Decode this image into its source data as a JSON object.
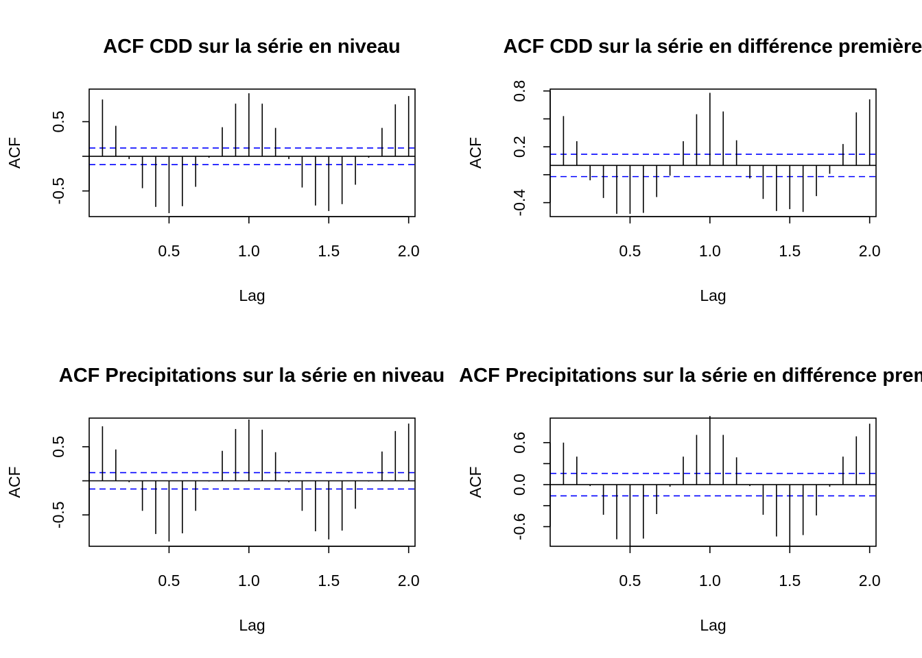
{
  "chart_data": [
    {
      "type": "bar",
      "title": "ACF CDD sur la série en niveau",
      "xlabel": "Lag",
      "ylabel": "ACF",
      "xlim": [
        0,
        2.04
      ],
      "ylim": [
        -0.87,
        0.97
      ],
      "xticks": [
        0.5,
        1.0,
        1.5,
        2.0
      ],
      "xtick_labels": [
        "0.5",
        "1.0",
        "1.5",
        "2.0"
      ],
      "yticks": [
        -0.5,
        0.5
      ],
      "ytick_labels": [
        "-0.5",
        "0.5"
      ],
      "ci": 0.12,
      "ci_color": "#0000ff",
      "series": [
        {
          "x": [
            0.0833,
            0.1667,
            0.25,
            0.3333,
            0.4167,
            0.5,
            0.5833,
            0.6667,
            0.75,
            0.8333,
            0.9167,
            1.0,
            1.0833,
            1.1667,
            1.25,
            1.3333,
            1.4167,
            1.5,
            1.5833,
            1.6667,
            1.75,
            1.8333,
            1.9167,
            2.0
          ],
          "values": [
            0.82,
            0.44,
            -0.04,
            -0.46,
            -0.73,
            -0.82,
            -0.72,
            -0.44,
            -0.02,
            0.42,
            0.76,
            0.91,
            0.76,
            0.41,
            -0.04,
            -0.45,
            -0.71,
            -0.79,
            -0.69,
            -0.41,
            -0.02,
            0.41,
            0.75,
            0.87
          ]
        }
      ]
    },
    {
      "type": "bar",
      "title": "ACF CDD sur la série en différence première",
      "xlabel": "Lag",
      "ylabel": "ACF",
      "xlim": [
        0,
        2.04
      ],
      "ylim": [
        -0.55,
        0.82
      ],
      "xticks": [
        0.5,
        1.0,
        1.5,
        2.0
      ],
      "xtick_labels": [
        "0.5",
        "1.0",
        "1.5",
        "2.0"
      ],
      "yticks": [
        -0.4,
        0.2,
        0.8
      ],
      "ytick_labels": [
        "-0.4",
        "0.2",
        "0.8"
      ],
      "ci": 0.12,
      "ci_color": "#0000ff",
      "series": [
        {
          "x": [
            0.0833,
            0.1667,
            0.25,
            0.3333,
            0.4167,
            0.5,
            0.5833,
            0.6667,
            0.75,
            0.8333,
            0.9167,
            1.0,
            1.0833,
            1.1667,
            1.25,
            1.3333,
            1.4167,
            1.5,
            1.5833,
            1.6667,
            1.75,
            1.8333,
            1.9167,
            2.0
          ],
          "values": [
            0.53,
            0.26,
            -0.16,
            -0.35,
            -0.52,
            -0.52,
            -0.51,
            -0.34,
            -0.11,
            0.26,
            0.55,
            0.78,
            0.58,
            0.27,
            -0.14,
            -0.36,
            -0.49,
            -0.47,
            -0.5,
            -0.33,
            -0.09,
            0.23,
            0.57,
            0.71
          ]
        }
      ]
    },
    {
      "type": "bar",
      "title": "ACF Precipitations sur la série en niveau",
      "xlabel": "Lag",
      "ylabel": "ACF",
      "xlim": [
        0,
        2.04
      ],
      "ylim": [
        -0.96,
        0.92
      ],
      "xticks": [
        0.5,
        1.0,
        1.5,
        2.0
      ],
      "xtick_labels": [
        "0.5",
        "1.0",
        "1.5",
        "2.0"
      ],
      "yticks": [
        -0.5,
        0.5
      ],
      "ytick_labels": [
        "-0.5",
        "0.5"
      ],
      "ci": 0.12,
      "ci_color": "#0000ff",
      "series": [
        {
          "x": [
            0.0833,
            0.1667,
            0.25,
            0.3333,
            0.4167,
            0.5,
            0.5833,
            0.6667,
            0.75,
            0.8333,
            0.9167,
            1.0,
            1.0833,
            1.1667,
            1.25,
            1.3333,
            1.4167,
            1.5,
            1.5833,
            1.6667,
            1.75,
            1.8333,
            1.9167,
            2.0
          ],
          "values": [
            0.8,
            0.46,
            -0.02,
            -0.44,
            -0.78,
            -0.89,
            -0.77,
            -0.44,
            -0.01,
            0.44,
            0.76,
            0.9,
            0.75,
            0.42,
            -0.02,
            -0.44,
            -0.74,
            -0.86,
            -0.73,
            -0.41,
            -0.01,
            0.43,
            0.73,
            0.84
          ]
        }
      ]
    },
    {
      "type": "bar",
      "title": "ACF Precipitations sur la série en différence première",
      "xlabel": "Lag",
      "ylabel": "ACF",
      "xlim": [
        0,
        2.04
      ],
      "ylim": [
        -0.88,
        0.95
      ],
      "xticks": [
        0.5,
        1.0,
        1.5,
        2.0
      ],
      "xtick_labels": [
        "0.5",
        "1.0",
        "1.5",
        "2.0"
      ],
      "yticks": [
        -0.6,
        0.0,
        0.6
      ],
      "ytick_labels": [
        "-0.6",
        "0.0",
        "0.6"
      ],
      "ci": 0.16,
      "ci_color": "#0000ff",
      "series": [
        {
          "x": [
            0.0833,
            0.1667,
            0.25,
            0.3333,
            0.4167,
            0.5,
            0.5833,
            0.6667,
            0.75,
            0.8333,
            0.9167,
            1.0,
            1.0833,
            1.1667,
            1.25,
            1.3333,
            1.4167,
            1.5,
            1.5833,
            1.6667,
            1.75,
            1.8333,
            1.9167,
            2.0
          ],
          "values": [
            0.6,
            0.4,
            -0.02,
            -0.43,
            -0.78,
            -0.89,
            -0.77,
            -0.42,
            -0.03,
            0.4,
            0.71,
            0.98,
            0.71,
            0.39,
            -0.02,
            -0.43,
            -0.74,
            -0.88,
            -0.72,
            -0.44,
            -0.03,
            0.4,
            0.69,
            0.87
          ]
        }
      ]
    }
  ]
}
